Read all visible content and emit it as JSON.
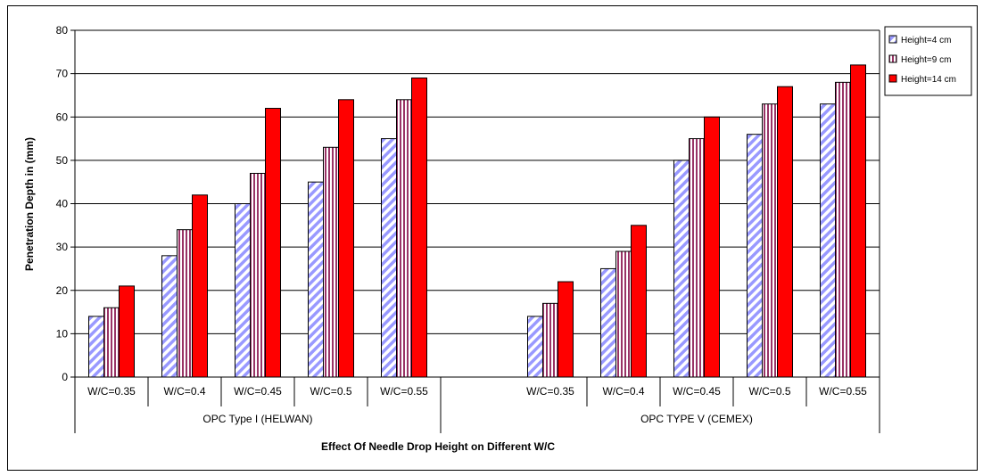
{
  "chart_data": {
    "type": "bar",
    "xlabel": "Effect Of Needle Drop Height on Different W/C",
    "ylabel": "Penetration Depth in (mm)",
    "ylim": [
      0,
      80
    ],
    "yticks": [
      0,
      10,
      20,
      30,
      40,
      50,
      60,
      70,
      80
    ],
    "grid": true,
    "legend_position": "top-right",
    "groups": [
      {
        "label": "OPC Type I  (HELWAN)",
        "categories": [
          "W/C=0.35",
          "W/C=0.4",
          "W/C=0.45",
          "W/C=0.5",
          "W/C=0.55"
        ]
      },
      {
        "label": "OPC  TYPE  V (CEMEX)",
        "categories": [
          "W/C=0.35",
          "W/C=0.4",
          "W/C=0.45",
          "W/C=0.5",
          "W/C=0.55"
        ]
      }
    ],
    "series": [
      {
        "name": "Height=4 cm",
        "color": "#9999ff",
        "pattern": "diagonal-stripes",
        "values": [
          14,
          28,
          40,
          45,
          55,
          null,
          14,
          25,
          50,
          56,
          63
        ]
      },
      {
        "name": "Height=9 cm",
        "color": "#993366",
        "pattern": "vertical-stripes",
        "values": [
          16,
          34,
          47,
          53,
          64,
          null,
          17,
          29,
          55,
          63,
          68
        ]
      },
      {
        "name": "Height=14 cm",
        "color": "#ff0000",
        "pattern": "solid",
        "values": [
          21,
          42,
          62,
          64,
          69,
          null,
          22,
          35,
          60,
          67,
          72
        ]
      }
    ]
  }
}
